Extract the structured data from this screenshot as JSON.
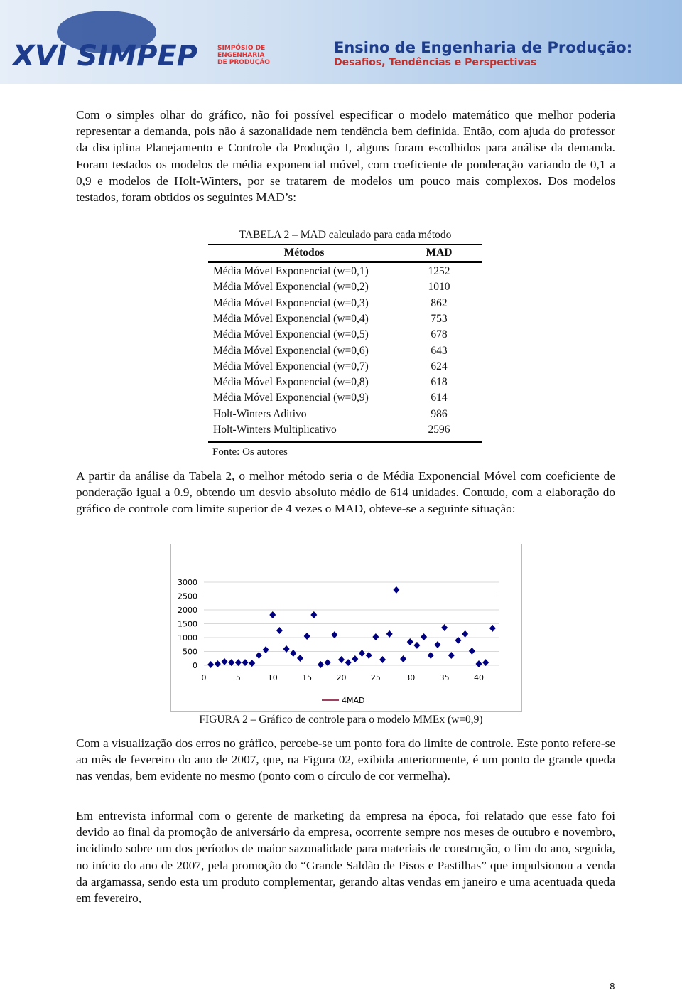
{
  "header": {
    "event": "XVI SIMPEP",
    "subtitle_lines": [
      "SIMPÓSIO DE",
      "ENGENHARIA",
      "DE PRODUÇÃO"
    ],
    "theme": "Ensino de Engenharia de Produção:",
    "theme_sub": "Desafios, Tendências e Perspectivas"
  },
  "paragraphs": [
    "Com o simples olhar do gráfico, não foi possível especificar o modelo matemático que melhor poderia representar a demanda, pois não á sazonalidade nem tendência bem definida. Então, com ajuda do professor da disciplina Planejamento e Controle da Produção I, alguns foram escolhidos para análise da demanda. Foram testados os modelos de média exponencial móvel, com coeficiente de ponderação variando de 0,1 a 0,9 e modelos de Holt-Winters, por se tratarem de modelos um pouco mais complexos. Dos modelos testados, foram obtidos os seguintes MAD’s:",
    "A partir da análise da Tabela 2, o melhor método seria o de Média Exponencial Móvel com coeficiente de ponderação igual a 0.9, obtendo um desvio absoluto médio de 614 unidades. Contudo, com a elaboração do gráfico de controle com limite superior de 4 vezes o MAD, obteve-se a seguinte situação:",
    "Com a visualização dos erros no gráfico, percebe-se um ponto fora do limite de controle. Este ponto refere-se ao mês de fevereiro do ano de 2007, que, na Figura 02, exibida anteriormente, é um ponto de grande queda nas vendas, bem evidente no mesmo (ponto com o círculo de cor vermelha).",
    "Em entrevista informal com o gerente de marketing da empresa na época, foi relatado que esse fato foi devido ao final da promoção de aniversário da empresa, ocorrente sempre nos meses de outubro e novembro, incidindo sobre um dos períodos de maior sazonalidade para materiais de construção, o fim do ano, seguida, no início do ano de 2007, pela promoção do “Grande Saldão de Pisos e Pastilhas” que impulsionou a venda da argamassa, sendo esta um produto complementar, gerando altas vendas em janeiro e uma acentuada queda em fevereiro,"
  ],
  "table": {
    "caption": "TABELA 2 – MAD calculado para cada método",
    "columns": [
      "Métodos",
      "MAD"
    ],
    "rows": [
      [
        "Média Móvel Exponencial (w=0,1)",
        1252
      ],
      [
        "Média Móvel Exponencial (w=0,2)",
        1010
      ],
      [
        "Média Móvel Exponencial (w=0,3)",
        862
      ],
      [
        "Média Móvel Exponencial (w=0,4)",
        753
      ],
      [
        "Média Móvel Exponencial (w=0,5)",
        678
      ],
      [
        "Média Móvel Exponencial (w=0,6)",
        643
      ],
      [
        "Média Móvel Exponencial (w=0,7)",
        624
      ],
      [
        "Média Móvel Exponencial (w=0,8)",
        618
      ],
      [
        "Média Móvel Exponencial (w=0,9)",
        614
      ],
      [
        "Holt-Winters Aditivo",
        986
      ],
      [
        "Holt-Winters Multiplicativo",
        2596
      ]
    ],
    "source": "Fonte: Os autores"
  },
  "chart_data": {
    "type": "scatter",
    "color": "#00007f",
    "x": [
      1,
      2,
      3,
      4,
      5,
      6,
      7,
      8,
      9,
      10,
      11,
      12,
      13,
      14,
      15,
      16,
      17,
      18,
      19,
      20,
      21,
      22,
      23,
      24,
      25,
      26,
      27,
      28,
      29,
      30,
      31,
      32,
      33,
      34,
      35,
      36,
      37,
      38,
      39,
      40,
      41,
      42
    ],
    "values": [
      25,
      50,
      130,
      100,
      100,
      100,
      75,
      360,
      560,
      1820,
      1255,
      590,
      435,
      255,
      1050,
      1820,
      25,
      100,
      1100,
      205,
      100,
      230,
      435,
      360,
      1025,
      205,
      1130,
      2720,
      230,
      845,
      720,
      1025,
      360,
      745,
      1360,
      360,
      900,
      1130,
      515,
      50,
      100,
      1335
    ],
    "xlim": [
      0,
      43
    ],
    "ylim": [
      0,
      3000
    ],
    "xticks": [
      0,
      5,
      10,
      15,
      20,
      25,
      30,
      35,
      40
    ],
    "yticks": [
      0,
      500,
      1000,
      1500,
      2000,
      2500,
      3000
    ],
    "grid": true,
    "legend": {
      "name": "4MAD",
      "color": "#a04060"
    }
  },
  "figure_caption": "FIGURA 2 – Gráfico de controle para o modelo MMEx (w=0,9)",
  "page_number": "8"
}
